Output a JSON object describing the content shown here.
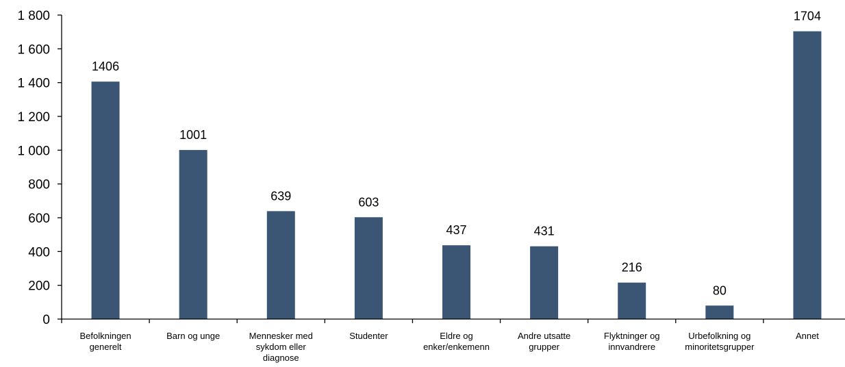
{
  "chart_data": {
    "type": "bar",
    "title": "",
    "xlabel": "",
    "ylabel": "",
    "ylim": [
      0,
      1800
    ],
    "yticks": [
      0,
      200,
      400,
      600,
      800,
      1000,
      1200,
      1400,
      1600,
      1800
    ],
    "ytick_labels": [
      "0",
      "200",
      "400",
      "600",
      "800",
      "1 000",
      "1 200",
      "1 400",
      "1 600",
      "1 800"
    ],
    "grid": false,
    "legend": "none",
    "bar_color": "#3b5675",
    "categories": [
      [
        "Befolkningen",
        "generelt"
      ],
      [
        "Barn og unge"
      ],
      [
        "Mennesker med",
        "sykdom eller",
        "diagnose"
      ],
      [
        "Studenter"
      ],
      [
        "Eldre og",
        "enker/enkemenn"
      ],
      [
        "Andre utsatte",
        "grupper"
      ],
      [
        "Flyktninger og",
        "innvandrere"
      ],
      [
        "Urbefolkning og",
        "minoritetsgrupper"
      ],
      [
        "Annet"
      ]
    ],
    "values": [
      1406,
      1001,
      639,
      603,
      437,
      431,
      216,
      80,
      1704
    ],
    "data_labels": [
      "1406",
      "1001",
      "639",
      "603",
      "437",
      "431",
      "216",
      "80",
      "1704"
    ]
  }
}
